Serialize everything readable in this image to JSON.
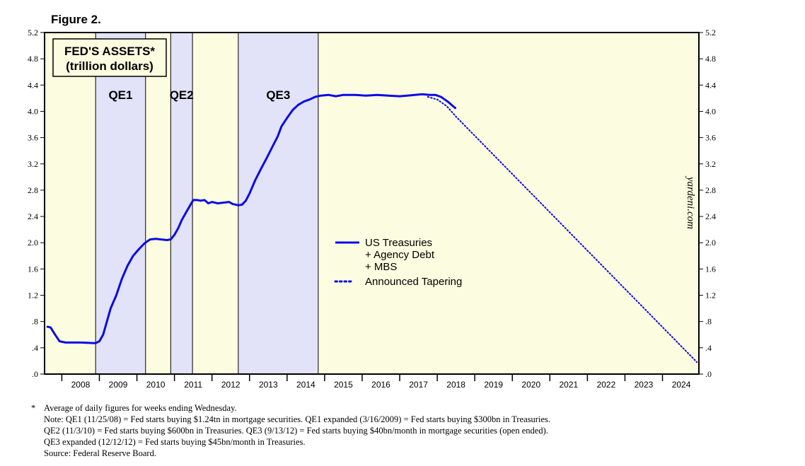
{
  "figure_label": "Figure 2.",
  "chart_data": {
    "type": "line",
    "title": "FED'S ASSETS*",
    "subtitle": "(trillion dollars)",
    "watermark": "yardeni.com",
    "y_ticks": [
      ".0",
      ".4",
      ".8",
      "1.2",
      "1.6",
      "2.0",
      "2.4",
      "2.8",
      "3.2",
      "3.6",
      "4.0",
      "4.4",
      "4.8",
      "5.2"
    ],
    "ylim": [
      0,
      5.2
    ],
    "xlim": [
      2007.54,
      2024.97
    ],
    "x_labels": [
      "2008",
      "2009",
      "2010",
      "2011",
      "2012",
      "2013",
      "2014",
      "2015",
      "2016",
      "2017",
      "2018",
      "2019",
      "2020",
      "2021",
      "2022",
      "2023",
      "2024"
    ],
    "qe_periods": [
      {
        "name": "QE1",
        "start": 2008.9,
        "end": 2010.23
      },
      {
        "name": "QE2",
        "start": 2010.9,
        "end": 2011.48
      },
      {
        "name": "QE3",
        "start": 2012.7,
        "end": 2014.83
      }
    ],
    "legend": [
      "US Treasuries",
      "+ Agency Debt",
      "+ MBS",
      "Announced Tapering"
    ],
    "colors": {
      "series": "#0a0ae6",
      "qe_band": "#e2e2f8",
      "background": "#fcfce0"
    },
    "series": [
      {
        "name": "US Treasuries + Agency Debt + MBS",
        "style": "solid",
        "points": [
          [
            2007.62,
            0.72
          ],
          [
            2007.7,
            0.71
          ],
          [
            2007.82,
            0.6
          ],
          [
            2007.94,
            0.5
          ],
          [
            2008.1,
            0.48
          ],
          [
            2008.5,
            0.48
          ],
          [
            2008.9,
            0.47
          ],
          [
            2009.0,
            0.5
          ],
          [
            2009.1,
            0.6
          ],
          [
            2009.2,
            0.8
          ],
          [
            2009.3,
            1.0
          ],
          [
            2009.45,
            1.2
          ],
          [
            2009.6,
            1.45
          ],
          [
            2009.75,
            1.65
          ],
          [
            2009.9,
            1.8
          ],
          [
            2010.05,
            1.9
          ],
          [
            2010.2,
            1.99
          ],
          [
            2010.35,
            2.05
          ],
          [
            2010.5,
            2.06
          ],
          [
            2010.65,
            2.05
          ],
          [
            2010.8,
            2.04
          ],
          [
            2010.9,
            2.05
          ],
          [
            2011.0,
            2.12
          ],
          [
            2011.1,
            2.22
          ],
          [
            2011.2,
            2.35
          ],
          [
            2011.3,
            2.45
          ],
          [
            2011.4,
            2.55
          ],
          [
            2011.5,
            2.65
          ],
          [
            2011.6,
            2.65
          ],
          [
            2011.7,
            2.64
          ],
          [
            2011.8,
            2.65
          ],
          [
            2011.9,
            2.6
          ],
          [
            2012.0,
            2.62
          ],
          [
            2012.15,
            2.6
          ],
          [
            2012.3,
            2.61
          ],
          [
            2012.45,
            2.62
          ],
          [
            2012.55,
            2.59
          ],
          [
            2012.7,
            2.57
          ],
          [
            2012.8,
            2.58
          ],
          [
            2012.9,
            2.64
          ],
          [
            2013.0,
            2.75
          ],
          [
            2013.15,
            2.95
          ],
          [
            2013.3,
            3.12
          ],
          [
            2013.45,
            3.28
          ],
          [
            2013.6,
            3.45
          ],
          [
            2013.75,
            3.62
          ],
          [
            2013.85,
            3.77
          ],
          [
            2014.0,
            3.9
          ],
          [
            2014.15,
            4.02
          ],
          [
            2014.3,
            4.1
          ],
          [
            2014.45,
            4.15
          ],
          [
            2014.6,
            4.18
          ],
          [
            2014.75,
            4.22
          ],
          [
            2014.9,
            4.24
          ],
          [
            2015.1,
            4.25
          ],
          [
            2015.3,
            4.23
          ],
          [
            2015.5,
            4.25
          ],
          [
            2015.8,
            4.25
          ],
          [
            2016.1,
            4.24
          ],
          [
            2016.4,
            4.25
          ],
          [
            2016.7,
            4.24
          ],
          [
            2017.0,
            4.23
          ],
          [
            2017.2,
            4.24
          ],
          [
            2017.4,
            4.25
          ],
          [
            2017.6,
            4.26
          ],
          [
            2017.8,
            4.25
          ],
          [
            2017.95,
            4.25
          ],
          [
            2018.1,
            4.22
          ],
          [
            2018.2,
            4.18
          ],
          [
            2018.3,
            4.14
          ],
          [
            2018.4,
            4.09
          ],
          [
            2018.48,
            4.05
          ]
        ]
      },
      {
        "name": "Announced Tapering",
        "style": "dotted",
        "points": [
          [
            2017.75,
            4.22
          ],
          [
            2018.0,
            4.18
          ],
          [
            2018.25,
            4.08
          ],
          [
            2018.5,
            3.92
          ],
          [
            2024.92,
            0.18
          ]
        ]
      }
    ]
  },
  "footnotes": [
    {
      "marker": "*",
      "text": "Average of daily figures for weeks ending Wednesday."
    },
    {
      "marker": "",
      "text": "Note: QE1 (11/25/08) = Fed starts buying $1.24tn in mortgage securities. QE1 expanded (3/16/2009) = Fed starts buying $300bn in Treasuries."
    },
    {
      "marker": "",
      "text": "QE2 (11/3/10) = Fed starts buying $600bn in Treasuries. QE3 (9/13/12) = Fed starts buying $40bn/month in mortgage securities (open ended)."
    },
    {
      "marker": "",
      "text": "QE3 expanded (12/12/12) = Fed starts buying $45bn/month in Treasuries."
    },
    {
      "marker": "",
      "text": "Source: Federal Reserve Board."
    }
  ]
}
